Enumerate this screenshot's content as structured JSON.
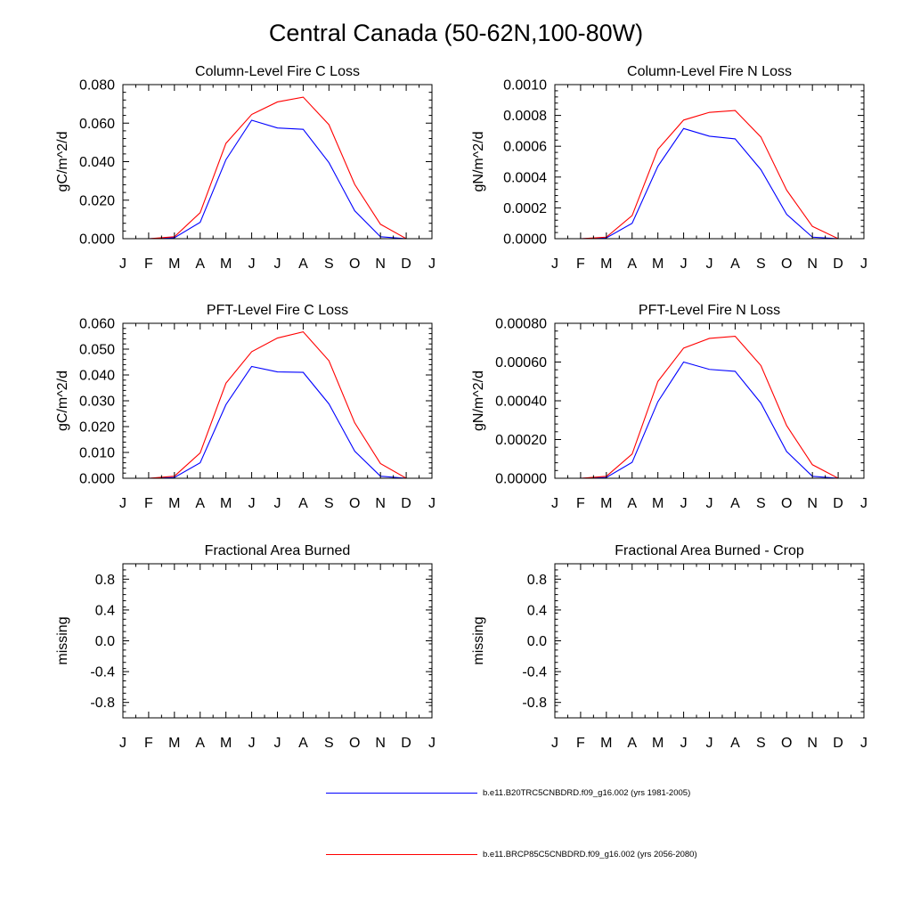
{
  "title": "Central Canada (50-62N,100-80W)",
  "colors": {
    "series_1": "#0000ff",
    "series_2": "#ff0000",
    "axis": "#000000"
  },
  "legend": [
    {
      "label": "b.e11.B20TRC5CNBDRD.f09_g16.002 (yrs 1981-2005)",
      "color": "#0000ff"
    },
    {
      "label": "b.e11.BRCP85C5CNBDRD.f09_g16.002 (yrs 2056-2080)",
      "color": "#ff0000"
    }
  ],
  "chart_data": [
    {
      "type": "line",
      "title": "Column-Level Fire C Loss",
      "ylabel": "gC/m^2/d",
      "xlabel": "",
      "ylim": [
        0,
        0.08
      ],
      "yticks": [
        0,
        0.02,
        0.04,
        0.06,
        0.08
      ],
      "ytick_labels": [
        "0.000",
        "0.020",
        "0.040",
        "0.060",
        "0.080"
      ],
      "xtick_labels": [
        "J",
        "F",
        "M",
        "A",
        "M",
        "J",
        "J",
        "A",
        "S",
        "O",
        "N",
        "D",
        "J"
      ],
      "x": [
        0,
        1,
        2,
        3,
        4,
        5,
        6,
        7,
        8,
        9,
        10,
        11,
        12
      ],
      "series": [
        {
          "name": "b.e11.B20TRC5CNBDRD.f09_g16.002 (yrs 1981-2005)",
          "color": "#0000ff",
          "values": [
            0,
            0,
            0.0005,
            0.0085,
            0.041,
            0.0615,
            0.0575,
            0.0568,
            0.0395,
            0.0145,
            0.001,
            0,
            0
          ]
        },
        {
          "name": "b.e11.BRCP85C5CNBDRD.f09_g16.002 (yrs 2056-2080)",
          "color": "#ff0000",
          "values": [
            0,
            0,
            0.001,
            0.0135,
            0.0495,
            0.0645,
            0.071,
            0.0735,
            0.0592,
            0.0282,
            0.0075,
            0,
            0
          ]
        }
      ]
    },
    {
      "type": "line",
      "title": "Column-Level Fire N Loss",
      "ylabel": "gN/m^2/d",
      "xlabel": "",
      "ylim": [
        0,
        0.001
      ],
      "yticks": [
        0,
        0.0002,
        0.0004,
        0.0006,
        0.0008,
        0.001
      ],
      "ytick_labels": [
        "0.0000",
        "0.0002",
        "0.0004",
        "0.0006",
        "0.0008",
        "0.0010"
      ],
      "xtick_labels": [
        "J",
        "F",
        "M",
        "A",
        "M",
        "J",
        "J",
        "A",
        "S",
        "O",
        "N",
        "D",
        "J"
      ],
      "x": [
        0,
        1,
        2,
        3,
        4,
        5,
        6,
        7,
        8,
        9,
        10,
        11,
        12
      ],
      "series": [
        {
          "name": "b.e11.B20TRC5CNBDRD.f09_g16.002 (yrs 1981-2005)",
          "color": "#0000ff",
          "values": [
            0,
            0,
            5e-06,
            0.0001,
            0.00047,
            0.000715,
            0.000665,
            0.000648,
            0.000448,
            0.000158,
            1e-05,
            0,
            0
          ]
        },
        {
          "name": "b.e11.BRCP85C5CNBDRD.f09_g16.002 (yrs 2056-2080)",
          "color": "#ff0000",
          "values": [
            0,
            0,
            1e-05,
            0.00015,
            0.00058,
            0.00077,
            0.00082,
            0.000832,
            0.00066,
            0.000315,
            8e-05,
            0,
            0
          ]
        }
      ]
    },
    {
      "type": "line",
      "title": "PFT-Level Fire C Loss",
      "ylabel": "gC/m^2/d",
      "xlabel": "",
      "ylim": [
        0,
        0.06
      ],
      "yticks": [
        0,
        0.01,
        0.02,
        0.03,
        0.04,
        0.05,
        0.06
      ],
      "ytick_labels": [
        "0.000",
        "0.010",
        "0.020",
        "0.030",
        "0.040",
        "0.050",
        "0.060"
      ],
      "xtick_labels": [
        "J",
        "F",
        "M",
        "A",
        "M",
        "J",
        "J",
        "A",
        "S",
        "O",
        "N",
        "D",
        "J"
      ],
      "x": [
        0,
        1,
        2,
        3,
        4,
        5,
        6,
        7,
        8,
        9,
        10,
        11,
        12
      ],
      "series": [
        {
          "name": "b.e11.B20TRC5CNBDRD.f09_g16.002 (yrs 1981-2005)",
          "color": "#0000ff",
          "values": [
            0,
            0,
            0.0003,
            0.006,
            0.0285,
            0.0433,
            0.0412,
            0.041,
            0.0288,
            0.0105,
            0.0008,
            0,
            0
          ]
        },
        {
          "name": "b.e11.BRCP85C5CNBDRD.f09_g16.002 (yrs 2056-2080)",
          "color": "#ff0000",
          "values": [
            0,
            0,
            0.0008,
            0.0098,
            0.0368,
            0.049,
            0.0543,
            0.0567,
            0.0455,
            0.0215,
            0.0057,
            0,
            0
          ]
        }
      ]
    },
    {
      "type": "line",
      "title": "PFT-Level Fire N Loss",
      "ylabel": "gN/m^2/d",
      "xlabel": "",
      "ylim": [
        0,
        0.0008
      ],
      "yticks": [
        0,
        0.0002,
        0.0004,
        0.0006,
        0.0008
      ],
      "ytick_labels": [
        "0.00000",
        "0.00020",
        "0.00040",
        "0.00060",
        "0.00080"
      ],
      "xtick_labels": [
        "J",
        "F",
        "M",
        "A",
        "M",
        "J",
        "J",
        "A",
        "S",
        "O",
        "N",
        "D",
        "J"
      ],
      "x": [
        0,
        1,
        2,
        3,
        4,
        5,
        6,
        7,
        8,
        9,
        10,
        11,
        12
      ],
      "series": [
        {
          "name": "b.e11.B20TRC5CNBDRD.f09_g16.002 (yrs 1981-2005)",
          "color": "#0000ff",
          "values": [
            0,
            0,
            4e-06,
            8.2e-05,
            0.000395,
            0.0006,
            0.000562,
            0.000552,
            0.000388,
            0.000138,
            1e-05,
            0,
            0
          ]
        },
        {
          "name": "b.e11.BRCP85C5CNBDRD.f09_g16.002 (yrs 2056-2080)",
          "color": "#ff0000",
          "values": [
            0,
            0,
            1e-05,
            0.000125,
            0.0005,
            0.000672,
            0.000722,
            0.000733,
            0.000582,
            0.000272,
            7e-05,
            0,
            0
          ]
        }
      ]
    },
    {
      "type": "line",
      "title": "Fractional Area Burned",
      "ylabel": "missing",
      "xlabel": "",
      "ylim": [
        -1,
        1
      ],
      "yticks": [
        -0.8,
        -0.4,
        0,
        0.4,
        0.8
      ],
      "ytick_labels": [
        "-0.8",
        "-0.4",
        "0.0",
        "0.4",
        "0.8"
      ],
      "xtick_labels": [
        "J",
        "F",
        "M",
        "A",
        "M",
        "J",
        "J",
        "A",
        "S",
        "O",
        "N",
        "D",
        "J"
      ],
      "x": [
        0,
        1,
        2,
        3,
        4,
        5,
        6,
        7,
        8,
        9,
        10,
        11,
        12
      ],
      "series": []
    },
    {
      "type": "line",
      "title": "Fractional Area Burned - Crop",
      "ylabel": "missing",
      "xlabel": "",
      "ylim": [
        -1,
        1
      ],
      "yticks": [
        -0.8,
        -0.4,
        0,
        0.4,
        0.8
      ],
      "ytick_labels": [
        "-0.8",
        "-0.4",
        "0.0",
        "0.4",
        "0.8"
      ],
      "xtick_labels": [
        "J",
        "F",
        "M",
        "A",
        "M",
        "J",
        "J",
        "A",
        "S",
        "O",
        "N",
        "D",
        "J"
      ],
      "x": [
        0,
        1,
        2,
        3,
        4,
        5,
        6,
        7,
        8,
        9,
        10,
        11,
        12
      ],
      "series": []
    }
  ]
}
